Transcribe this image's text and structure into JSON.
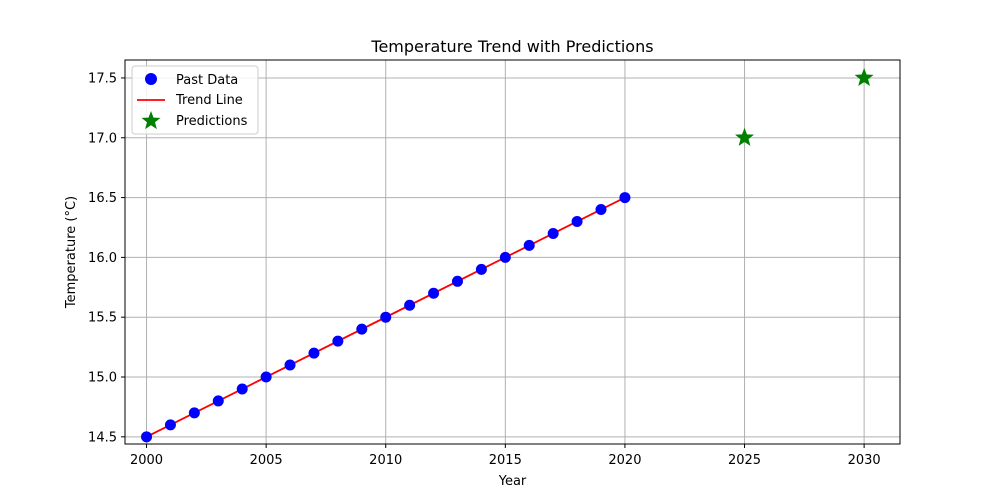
{
  "chart_data": {
    "type": "scatter",
    "title": "Temperature Trend with Predictions",
    "xlabel": "Year",
    "ylabel": "Temperature (°C)",
    "xlim": [
      1999.1,
      2031.5
    ],
    "ylim": [
      14.44,
      17.65
    ],
    "xticks": [
      2000,
      2005,
      2010,
      2015,
      2020,
      2025,
      2030
    ],
    "yticks": [
      14.5,
      15.0,
      15.5,
      16.0,
      16.5,
      17.0,
      17.5
    ],
    "grid": true,
    "legend_position": "top-left",
    "series": [
      {
        "name": "Past Data",
        "kind": "scatter",
        "marker": "circle",
        "color": "#0000ff",
        "x": [
          2000,
          2001,
          2002,
          2003,
          2004,
          2005,
          2006,
          2007,
          2008,
          2009,
          2010,
          2011,
          2012,
          2013,
          2014,
          2015,
          2016,
          2017,
          2018,
          2019,
          2020
        ],
        "y": [
          14.5,
          14.6,
          14.7,
          14.8,
          14.9,
          15.0,
          15.1,
          15.2,
          15.3,
          15.4,
          15.5,
          15.6,
          15.7,
          15.8,
          15.9,
          16.0,
          16.1,
          16.2,
          16.3,
          16.4,
          16.5
        ]
      },
      {
        "name": "Trend Line",
        "kind": "line",
        "color": "#ff0000",
        "x": [
          2000,
          2020
        ],
        "y": [
          14.5,
          16.5
        ]
      },
      {
        "name": "Predictions",
        "kind": "scatter",
        "marker": "star",
        "color": "#008000",
        "x": [
          2025,
          2030
        ],
        "y": [
          17.0,
          17.5
        ]
      }
    ]
  }
}
